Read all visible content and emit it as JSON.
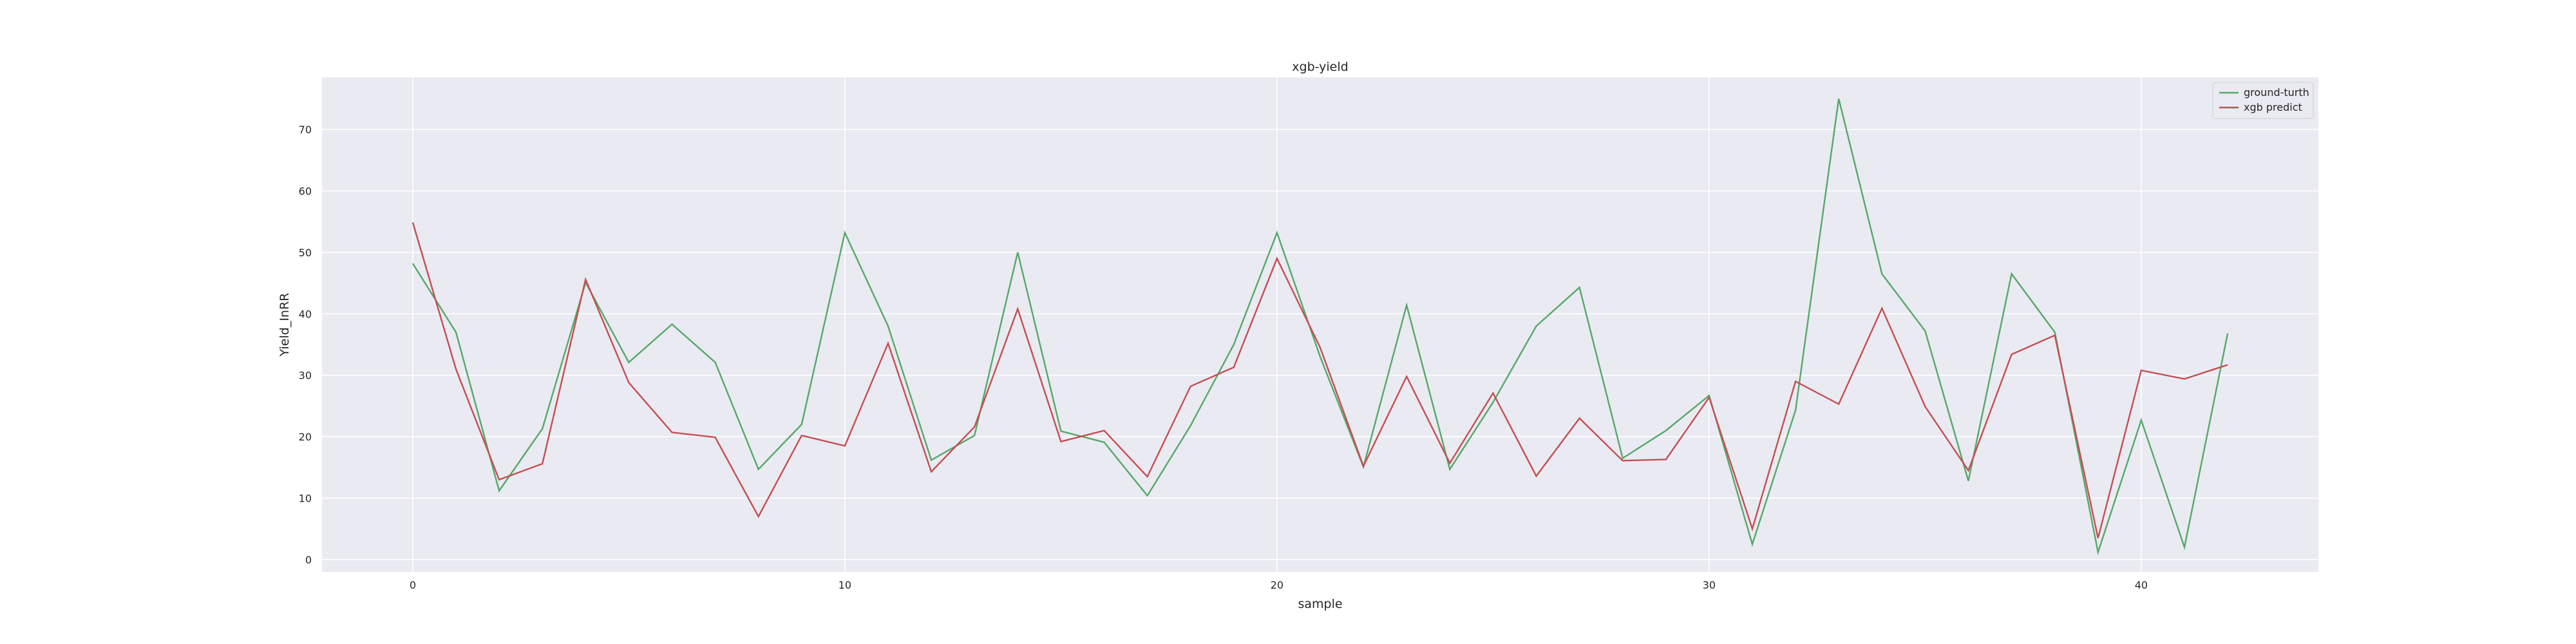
{
  "chart_data": {
    "type": "line",
    "title": "xgb-yield",
    "xlabel": "sample",
    "ylabel": "Yield_InRR",
    "xlim": [
      -2.1,
      44.1
    ],
    "ylim": [
      -2.0,
      78.5
    ],
    "xticks": [
      0,
      10,
      20,
      30,
      40
    ],
    "yticks": [
      0,
      10,
      20,
      30,
      40,
      50,
      60,
      70
    ],
    "grid": true,
    "legend_position": "top-right",
    "background_color": "#eaeaf2",
    "x": [
      0,
      1,
      2,
      3,
      4,
      5,
      6,
      7,
      8,
      9,
      10,
      11,
      12,
      13,
      14,
      15,
      16,
      17,
      18,
      19,
      20,
      21,
      22,
      23,
      24,
      25,
      26,
      27,
      28,
      29,
      30,
      31,
      32,
      33,
      34,
      35,
      36,
      37,
      38,
      39,
      40,
      41,
      42
    ],
    "series": [
      {
        "name": "ground-turth",
        "color": "#55a868",
        "values": [
          48.2,
          37.0,
          11.2,
          21.3,
          45.1,
          32.1,
          38.3,
          32.1,
          14.7,
          22.0,
          53.2,
          38.0,
          16.2,
          20.2,
          50.0,
          20.9,
          19.1,
          10.4,
          21.8,
          35.0,
          53.2,
          33.0,
          15.1,
          41.4,
          14.7,
          25.6,
          38.0,
          44.3,
          16.5,
          21.0,
          26.7,
          2.5,
          24.3,
          75.0,
          46.5,
          37.2,
          12.8,
          46.5,
          37.0,
          1.2,
          22.7,
          2.0,
          36.8
        ]
      },
      {
        "name": "xgb predict",
        "color": "#c44e52",
        "values": [
          54.9,
          31.0,
          13.0,
          15.6,
          45.6,
          28.8,
          20.7,
          19.9,
          7.0,
          20.2,
          18.5,
          35.2,
          14.3,
          21.6,
          40.8,
          19.2,
          21.0,
          13.5,
          28.2,
          31.3,
          49.0,
          34.5,
          15.2,
          29.8,
          15.7,
          27.1,
          13.6,
          23.0,
          16.1,
          16.3,
          26.4,
          5.0,
          29.0,
          25.3,
          40.9,
          24.9,
          14.5,
          33.4,
          36.5,
          3.5,
          30.8,
          29.4,
          31.7
        ]
      }
    ]
  }
}
